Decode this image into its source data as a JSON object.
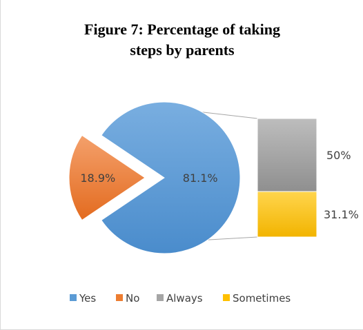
{
  "chart_data": {
    "type": "pie",
    "title": "Figure 7: Percentage of taking steps by parents",
    "title_lines": [
      "Figure 7: Percentage of taking",
      "steps by parents"
    ],
    "slices": [
      {
        "name": "Yes",
        "value": 81.1,
        "label": "81.1%",
        "color": "#5b9bd5"
      },
      {
        "name": "No",
        "value": 18.9,
        "label": "18.9%",
        "color": "#ed7d31"
      }
    ],
    "breakdown": {
      "of": "Yes",
      "segments": [
        {
          "name": "Always",
          "value": 50,
          "label": "50%",
          "color": "#a5a5a5"
        },
        {
          "name": "Sometimes",
          "value": 31.1,
          "label": "31.1%",
          "color": "#ffc000"
        }
      ]
    },
    "legend": {
      "position": "bottom",
      "entries": [
        {
          "name": "Yes",
          "color": "#5b9bd5"
        },
        {
          "name": "No",
          "color": "#ed7d31"
        },
        {
          "name": "Always",
          "color": "#a5a5a5"
        },
        {
          "name": "Sometimes",
          "color": "#ffc000"
        }
      ]
    }
  }
}
